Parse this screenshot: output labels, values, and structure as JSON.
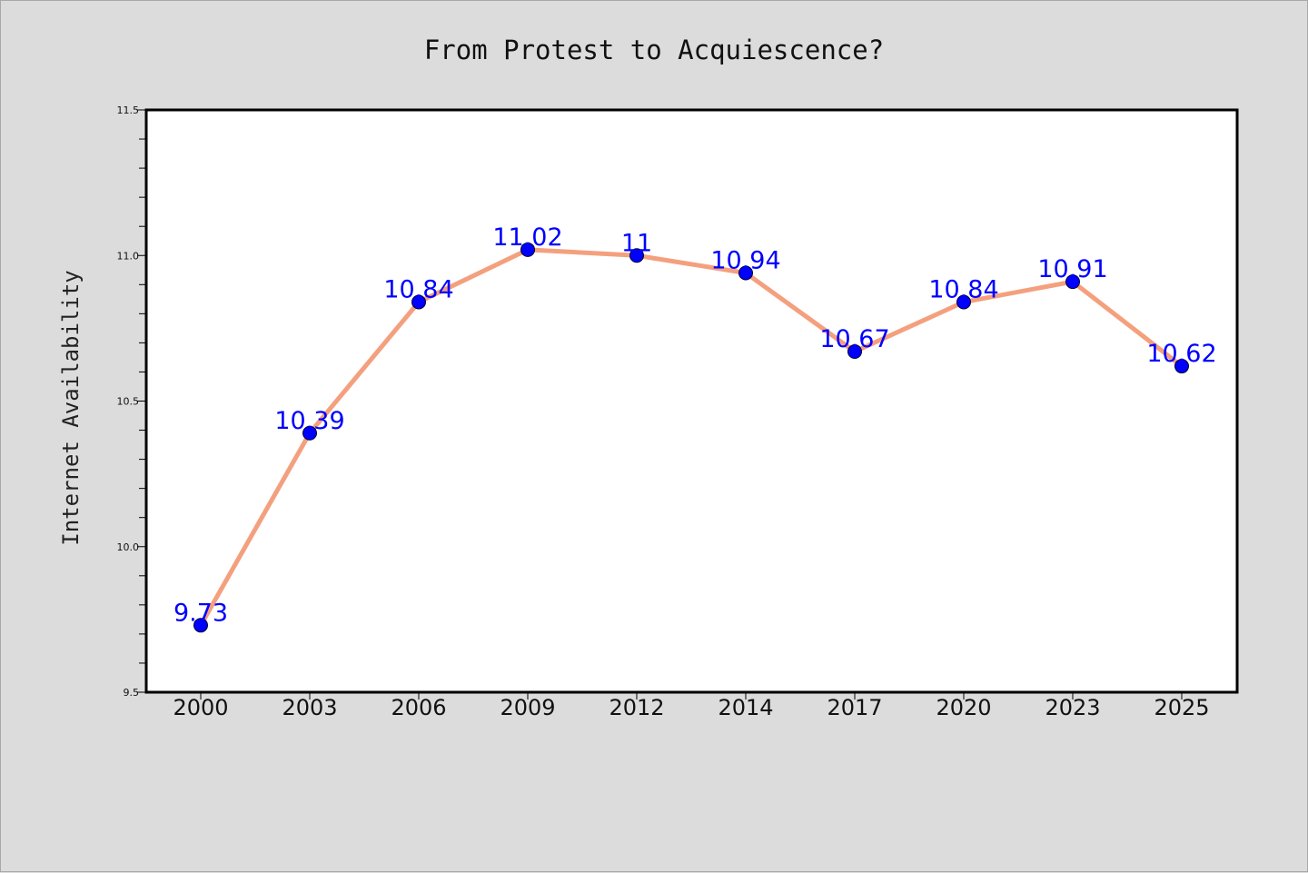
{
  "chart_data": {
    "type": "line",
    "title": "From Protest to Acquiescence?",
    "xlabel": "",
    "ylabel": "Internet Availability",
    "categories": [
      "2000",
      "2003",
      "2006",
      "2009",
      "2012",
      "2014",
      "2017",
      "2020",
      "2023",
      "2025"
    ],
    "series": [
      {
        "values": [
          9.73,
          10.39,
          10.84,
          11.02,
          11.0,
          10.94,
          10.67,
          10.84,
          10.91,
          10.62
        ]
      }
    ],
    "data_labels": [
      "9.73",
      "10.39",
      "10.84",
      "11.02",
      "11",
      "10.94",
      "10.67",
      "10.84",
      "10.91",
      "10.62"
    ],
    "ylim": [
      9.5,
      11.5
    ],
    "yticks": [
      "9.5",
      "10.0",
      "10.5",
      "11.0",
      "11.5"
    ],
    "yminor_step": 0.1,
    "grid": false,
    "legend": "none",
    "colors": {
      "line": "#f4a07e",
      "marker": "#0000ff",
      "label": "#0000ff",
      "background": "#dcdcdc",
      "plot_area": "#ffffff"
    }
  }
}
